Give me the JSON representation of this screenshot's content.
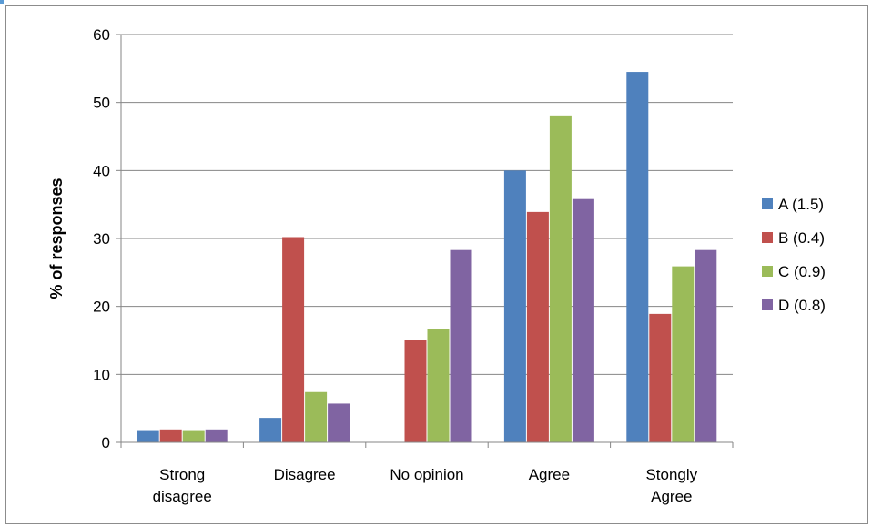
{
  "chart_data": {
    "type": "bar",
    "title": "",
    "xlabel": "",
    "ylabel": "% of responses",
    "ylim": [
      0,
      60
    ],
    "yticks": [
      0,
      10,
      20,
      30,
      40,
      50,
      60
    ],
    "grid": true,
    "legend_position": "right",
    "categories": [
      [
        "Strong",
        "disagree"
      ],
      [
        "Disagree"
      ],
      [
        "No opinion"
      ],
      [
        "Agree"
      ],
      [
        "Stongly",
        "Agree"
      ]
    ],
    "series": [
      {
        "name": "A (1.5)",
        "color": "#4f81bd",
        "values": [
          1.8,
          3.6,
          0,
          40,
          54.5
        ]
      },
      {
        "name": "B (0.4)",
        "color": "#c0504d",
        "values": [
          1.9,
          30.2,
          15.1,
          33.9,
          18.9
        ]
      },
      {
        "name": "C (0.9)",
        "color": "#9bbb59",
        "values": [
          1.8,
          7.4,
          16.7,
          48.1,
          25.9
        ]
      },
      {
        "name": "D (0.8)",
        "color": "#8064a2",
        "values": [
          1.9,
          5.7,
          28.3,
          35.8,
          28.3
        ]
      }
    ]
  }
}
